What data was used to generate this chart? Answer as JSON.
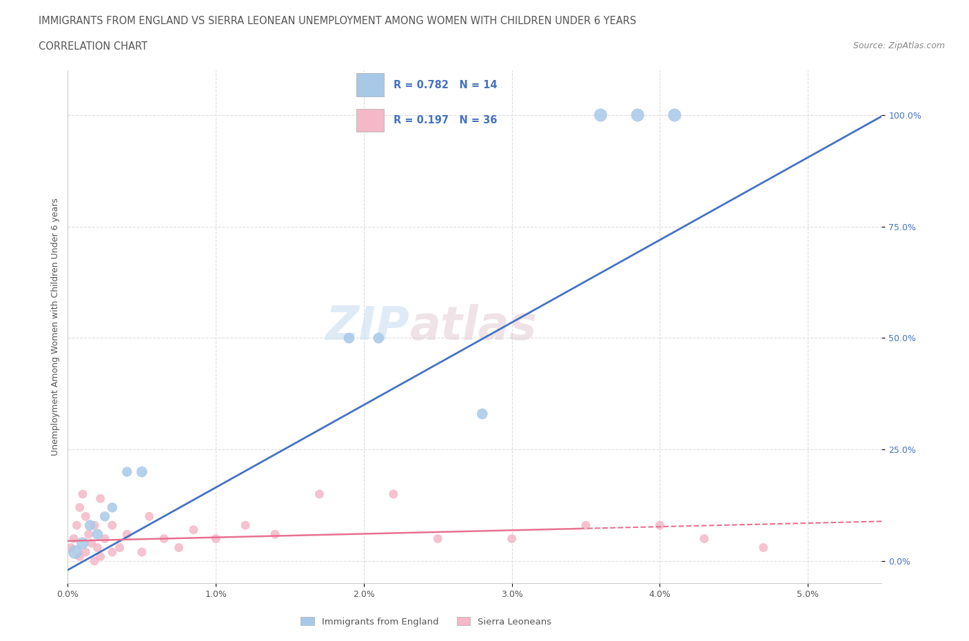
{
  "title_line1": "IMMIGRANTS FROM ENGLAND VS SIERRA LEONEAN UNEMPLOYMENT AMONG WOMEN WITH CHILDREN UNDER 6 YEARS",
  "title_line2": "CORRELATION CHART",
  "source_text": "Source: ZipAtlas.com",
  "ylabel": "Unemployment Among Women with Children Under 6 years",
  "x_tick_labels": [
    "0.0%",
    "1.0%",
    "2.0%",
    "3.0%",
    "4.0%",
    "5.0%"
  ],
  "y_tick_labels": [
    "0.0%",
    "25.0%",
    "50.0%",
    "75.0%",
    "100.0%"
  ],
  "xlim": [
    0.0,
    5.5
  ],
  "ylim": [
    -5.0,
    110.0
  ],
  "blue_color": "#a8c8e8",
  "blue_line_color": "#4472c4",
  "pink_color": "#f4b8c8",
  "pink_line_color": "#e87090",
  "legend_blue_label": "Immigrants from England",
  "legend_pink_label": "Sierra Leoneans",
  "R_blue": 0.782,
  "N_blue": 14,
  "R_pink": 0.197,
  "N_pink": 36,
  "watermark_zip": "ZIP",
  "watermark_atlas": "atlas",
  "blue_scatter_x": [
    0.05,
    0.1,
    0.15,
    0.2,
    0.25,
    0.3,
    0.4,
    0.5,
    1.9,
    2.1,
    2.8,
    3.6,
    4.1,
    3.85
  ],
  "blue_scatter_y": [
    2,
    4,
    8,
    6,
    10,
    12,
    20,
    20,
    50,
    50,
    33,
    100,
    100,
    100
  ],
  "blue_scatter_sizes": [
    200,
    150,
    120,
    120,
    100,
    100,
    100,
    120,
    120,
    120,
    120,
    180,
    180,
    180
  ],
  "pink_scatter_x": [
    0.02,
    0.04,
    0.06,
    0.08,
    0.1,
    0.12,
    0.14,
    0.16,
    0.18,
    0.2,
    0.22,
    0.25,
    0.3,
    0.35,
    0.4,
    0.5,
    0.55,
    0.65,
    0.75,
    0.85,
    1.0,
    1.2,
    1.4,
    1.7,
    2.2,
    2.5,
    3.0,
    3.5,
    4.0,
    4.3,
    4.7,
    0.08,
    0.12,
    0.18,
    0.22,
    0.3
  ],
  "pink_scatter_y": [
    3,
    5,
    8,
    12,
    15,
    10,
    6,
    4,
    8,
    3,
    14,
    5,
    8,
    3,
    6,
    2,
    10,
    5,
    3,
    7,
    5,
    8,
    6,
    15,
    15,
    5,
    5,
    8,
    8,
    5,
    3,
    1,
    2,
    0,
    1,
    2
  ],
  "pink_scatter_sizes": [
    80,
    80,
    80,
    80,
    80,
    80,
    80,
    80,
    80,
    80,
    80,
    80,
    80,
    80,
    80,
    80,
    80,
    80,
    80,
    80,
    80,
    80,
    80,
    80,
    80,
    80,
    80,
    80,
    80,
    80,
    80,
    80,
    80,
    80,
    80,
    80
  ],
  "grid_color": "#dddddd",
  "bg_color": "#ffffff",
  "text_color_title": "#555555",
  "text_color_blue": "#4472c4",
  "text_color_legend": "#4472c4",
  "blue_line_slope": 18.5,
  "blue_line_intercept": -2.0,
  "pink_line_slope": 0.8,
  "pink_line_intercept": 4.5
}
